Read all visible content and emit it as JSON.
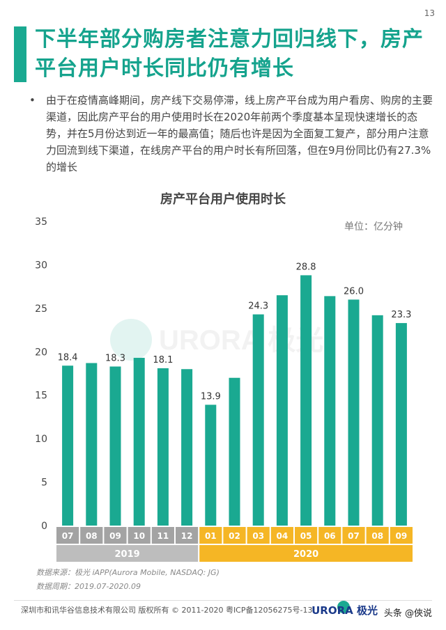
{
  "page_number": "13",
  "title": "下半年部分购房者注意力回归线下，房产平台用户时长同比仍有增长",
  "bullet": "由于在疫情高峰期间，房产线下交易停滞，线上房产平台成为用户看房、购房的主要渠道，因此房产平台的用户使用时长在2020年前两个季度基本呈现快速增长的态势，并在5月份达到近一年的最高值；随后也许是因为全面复工复产，部分用户注意力回流到线下渠道，在线房产平台的用户时长有所回落，但在9月份同比仍有27.3%的增长",
  "bullet_symbol": "•",
  "unit": "单位：亿分钟",
  "source": "数据来源：极光 iAPP(Aurora Mobile, NASDAQ: JG)",
  "period": "数据周期：2019.07-2020.09",
  "footer": "深圳市和讯华谷信息技术有限公司 版权所有 © 2011-2020 粤ICP备12056275号-13",
  "logo_text": "URORA 极光",
  "watermark_logo": "URORA 极光",
  "watermark": "头条 @俠说",
  "colors": {
    "bar": "#1aa991",
    "year2019": "#bdbdbd",
    "year2020": "#f5b625",
    "month_bg": "#a3a3a3",
    "title": "#15a38d"
  },
  "chart_data": {
    "type": "bar",
    "title": "房产平台用户使用时长",
    "categories": [
      "07",
      "08",
      "09",
      "10",
      "11",
      "12",
      "01",
      "02",
      "03",
      "04",
      "05",
      "06",
      "07",
      "08",
      "09"
    ],
    "years": [
      {
        "label": "2019",
        "count": 6
      },
      {
        "label": "2020",
        "count": 9
      }
    ],
    "values": [
      18.4,
      18.7,
      18.3,
      19.3,
      18.1,
      18.0,
      13.9,
      17.0,
      24.3,
      26.5,
      28.8,
      26.4,
      26.0,
      24.2,
      23.3
    ],
    "data_labels": [
      "18.4",
      "",
      "18.3",
      "",
      "18.1",
      "",
      "13.9",
      "",
      "24.3",
      "",
      "28.8",
      "",
      "26.0",
      "",
      "23.3"
    ],
    "ylim": [
      0,
      35
    ],
    "yticks": [
      0,
      5,
      10,
      15,
      20,
      25,
      30,
      35
    ],
    "grid": false,
    "legend": "none"
  }
}
